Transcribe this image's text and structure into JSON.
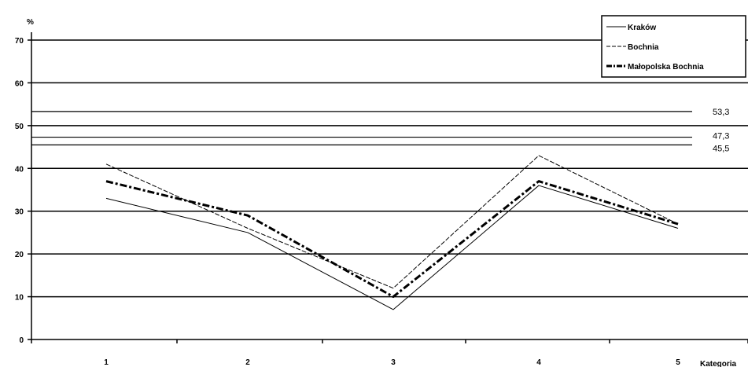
{
  "chart_data": {
    "type": "line",
    "ylabel": "%",
    "xlabel": "Kategoria",
    "categories": [
      "1",
      "2",
      "3",
      "4",
      "5"
    ],
    "ylim": [
      0,
      70
    ],
    "yticks": [
      "0",
      "10",
      "20",
      "30",
      "40",
      "50",
      "60",
      "70"
    ],
    "grid": true,
    "legend_position": "top-right",
    "series": [
      {
        "name": "Kraków",
        "style": "solid-thin",
        "color": "#000000",
        "values": [
          33,
          25,
          7,
          36,
          26
        ]
      },
      {
        "name": "Bochnia",
        "style": "dashed-thin",
        "color": "#000000",
        "values": [
          41,
          26,
          12,
          43,
          27
        ]
      },
      {
        "name": "Małopolska Bochnia",
        "style": "dash-dot-thick",
        "color": "#000000",
        "values": [
          37,
          29,
          10,
          37,
          27
        ]
      }
    ],
    "reference_lines": [
      {
        "value": 53.3,
        "label": "53,3"
      },
      {
        "value": 47.3,
        "label": "47,3"
      },
      {
        "value": 45.5,
        "label": "45,5"
      }
    ]
  }
}
